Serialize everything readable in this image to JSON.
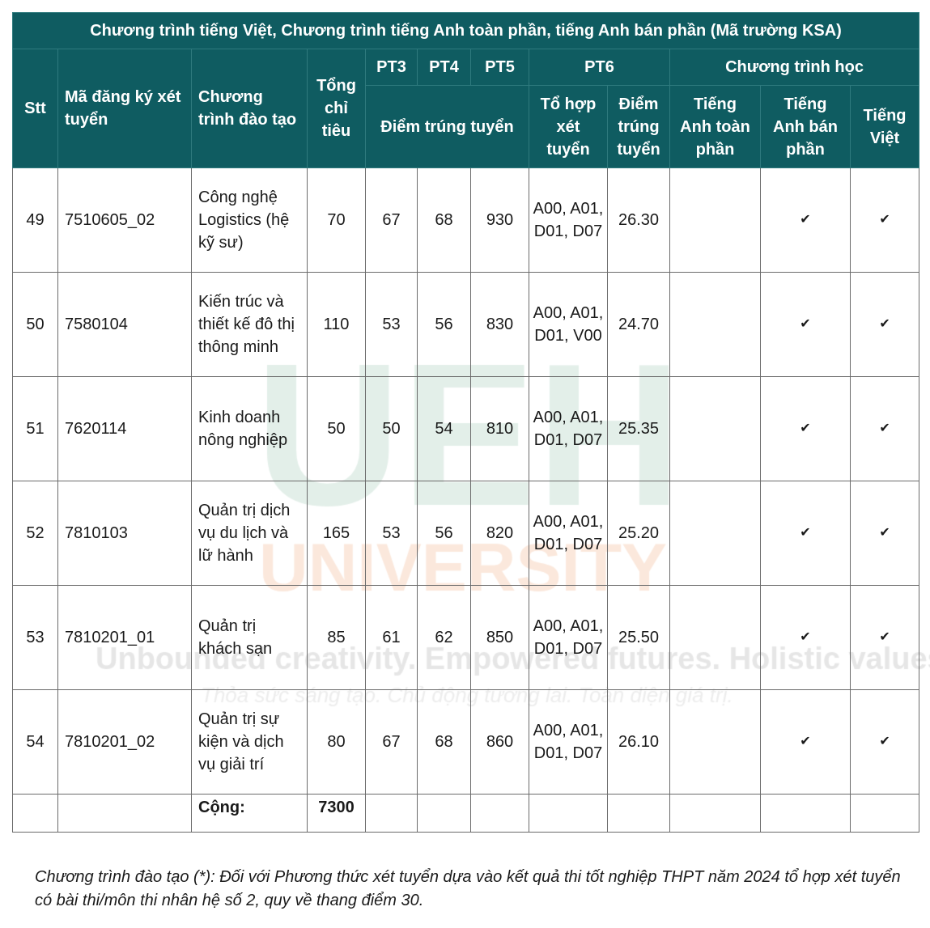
{
  "title": "Chương trình tiếng Việt, Chương trình tiếng Anh toàn phần, tiếng Anh bán phần (Mã trường KSA)",
  "headers": {
    "stt": "Stt",
    "ma": "Mã đăng ký xét tuyển",
    "chuong_trinh": "Chương trình đào tạo",
    "tong": "Tổng chỉ tiêu",
    "pt3": "PT3",
    "pt4": "PT4",
    "pt5": "PT5",
    "pt6": "PT6",
    "chuong_trinh_hoc": "Chương trình học",
    "diem_trung_tuyen": "Điểm trúng tuyển",
    "to_hop": "Tổ hợp xét tuyển",
    "diem_pt6": "Điểm trúng tuyển",
    "anh_toan_phan": "Tiếng Anh toàn phần",
    "anh_ban_phan": "Tiếng Anh bán phần",
    "tieng_viet": "Tiếng Việt"
  },
  "rows": [
    {
      "stt": "49",
      "ma": "7510605_02",
      "ten": "Công nghệ Logistics (hệ kỹ sư)",
      "tong": "70",
      "pt3": "67",
      "pt4": "68",
      "pt5": "930",
      "to_hop": "A00, A01, D01, D07",
      "diem": "26.30",
      "anh_toan_phan": "",
      "anh_ban_phan": "✔",
      "tieng_viet": "✔"
    },
    {
      "stt": "50",
      "ma": "7580104",
      "ten": "Kiến trúc và thiết kế đô thị thông minh",
      "tong": "110",
      "pt3": "53",
      "pt4": "56",
      "pt5": "830",
      "to_hop": "A00, A01, D01, V00",
      "diem": "24.70",
      "anh_toan_phan": "",
      "anh_ban_phan": "✔",
      "tieng_viet": "✔"
    },
    {
      "stt": "51",
      "ma": "7620114",
      "ten": "Kinh doanh nông nghiệp",
      "tong": "50",
      "pt3": "50",
      "pt4": "54",
      "pt5": "810",
      "to_hop": "A00, A01, D01, D07",
      "diem": "25.35",
      "anh_toan_phan": "",
      "anh_ban_phan": "✔",
      "tieng_viet": "✔"
    },
    {
      "stt": "52",
      "ma": "7810103",
      "ten": "Quản trị dịch vụ du lịch và lữ hành",
      "tong": "165",
      "pt3": "53",
      "pt4": "56",
      "pt5": "820",
      "to_hop": "A00, A01, D01, D07",
      "diem": "25.20",
      "anh_toan_phan": "",
      "anh_ban_phan": "✔",
      "tieng_viet": "✔"
    },
    {
      "stt": "53",
      "ma": "7810201_01",
      "ten": "Quản trị khách sạn",
      "tong": "85",
      "pt3": "61",
      "pt4": "62",
      "pt5": "850",
      "to_hop": "A00, A01, D01, D07",
      "diem": "25.50",
      "anh_toan_phan": "",
      "anh_ban_phan": "✔",
      "tieng_viet": "✔"
    },
    {
      "stt": "54",
      "ma": "7810201_02",
      "ten": "Quản trị sự kiện và dịch vụ giải trí",
      "tong": "80",
      "pt3": "67",
      "pt4": "68",
      "pt5": "860",
      "to_hop": "A00, A01, D01, D07",
      "diem": "26.10",
      "anh_toan_phan": "",
      "anh_ban_phan": "✔",
      "tieng_viet": "✔"
    }
  ],
  "total": {
    "label": "Cộng:",
    "value": "7300"
  },
  "footnote": "Chương trình đào tạo (*): Đối với Phương thức xét tuyển dựa vào kết quả thi tốt nghiệp THPT năm 2024 tổ hợp xét tuyển có bài thi/môn thi nhân hệ số 2, quy về thang điểm 30.",
  "watermark": {
    "logo": "UEH",
    "university": "UNIVERSITY",
    "slogan": "Unbounded creativity. Empowered futures. Holistic values.",
    "slogan_vi": "Thỏa sức sáng tạo. Chủ động tương lai. Toàn diện giá trị."
  },
  "colors": {
    "header_bg": "#0f5c61",
    "header_text": "#ffffff",
    "watermark_green": "#e3efe9",
    "watermark_orange": "#fbe8dc"
  }
}
